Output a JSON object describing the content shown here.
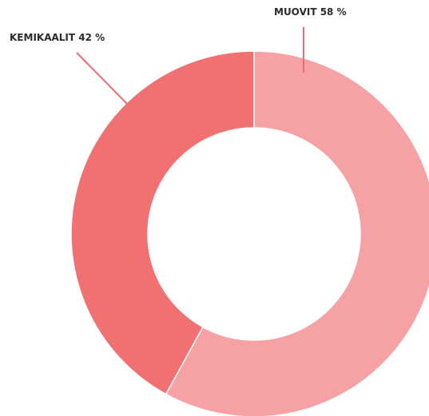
{
  "chart_data": {
    "type": "donut",
    "categories": [
      "MUOVIT",
      "KEMIKAALIT"
    ],
    "values": [
      58,
      42
    ],
    "value_labels": [
      "58 %",
      "42 %"
    ],
    "colors": [
      "#f6a2a4",
      "#f17172"
    ]
  }
}
